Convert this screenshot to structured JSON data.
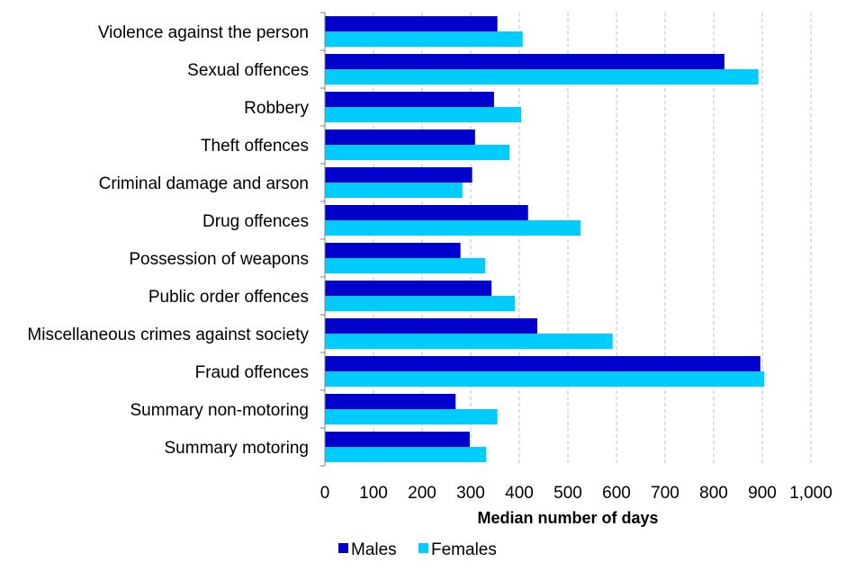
{
  "chart_data": {
    "type": "bar",
    "orientation": "horizontal",
    "categories": [
      "Violence against the person",
      "Sexual offences",
      "Robbery",
      "Theft offences",
      "Criminal damage and arson",
      "Drug offences",
      "Possession of weapons",
      "Public order offences",
      "Miscellaneous crimes against society",
      "Fraud offences",
      "Summary non-motoring",
      "Summary motoring"
    ],
    "series": [
      {
        "name": "Males",
        "color": "#0000cc",
        "values": [
          355,
          822,
          348,
          309,
          303,
          418,
          279,
          343,
          437,
          896,
          269,
          298
        ]
      },
      {
        "name": "Females",
        "color": "#00ccff",
        "values": [
          407,
          892,
          404,
          380,
          283,
          526,
          330,
          391,
          592,
          904,
          355,
          332
        ]
      }
    ],
    "xlabel": "Median number of days",
    "ylabel": "",
    "title": "",
    "xlim": [
      0,
      1000
    ],
    "xticks": [
      0,
      100,
      200,
      300,
      400,
      500,
      600,
      700,
      800,
      900,
      1000
    ],
    "xtick_labels": [
      "0",
      "100",
      "200",
      "300",
      "400",
      "500",
      "600",
      "700",
      "800",
      "900",
      "1,000"
    ],
    "grid": "vertical-dashed",
    "legend_position": "bottom"
  }
}
